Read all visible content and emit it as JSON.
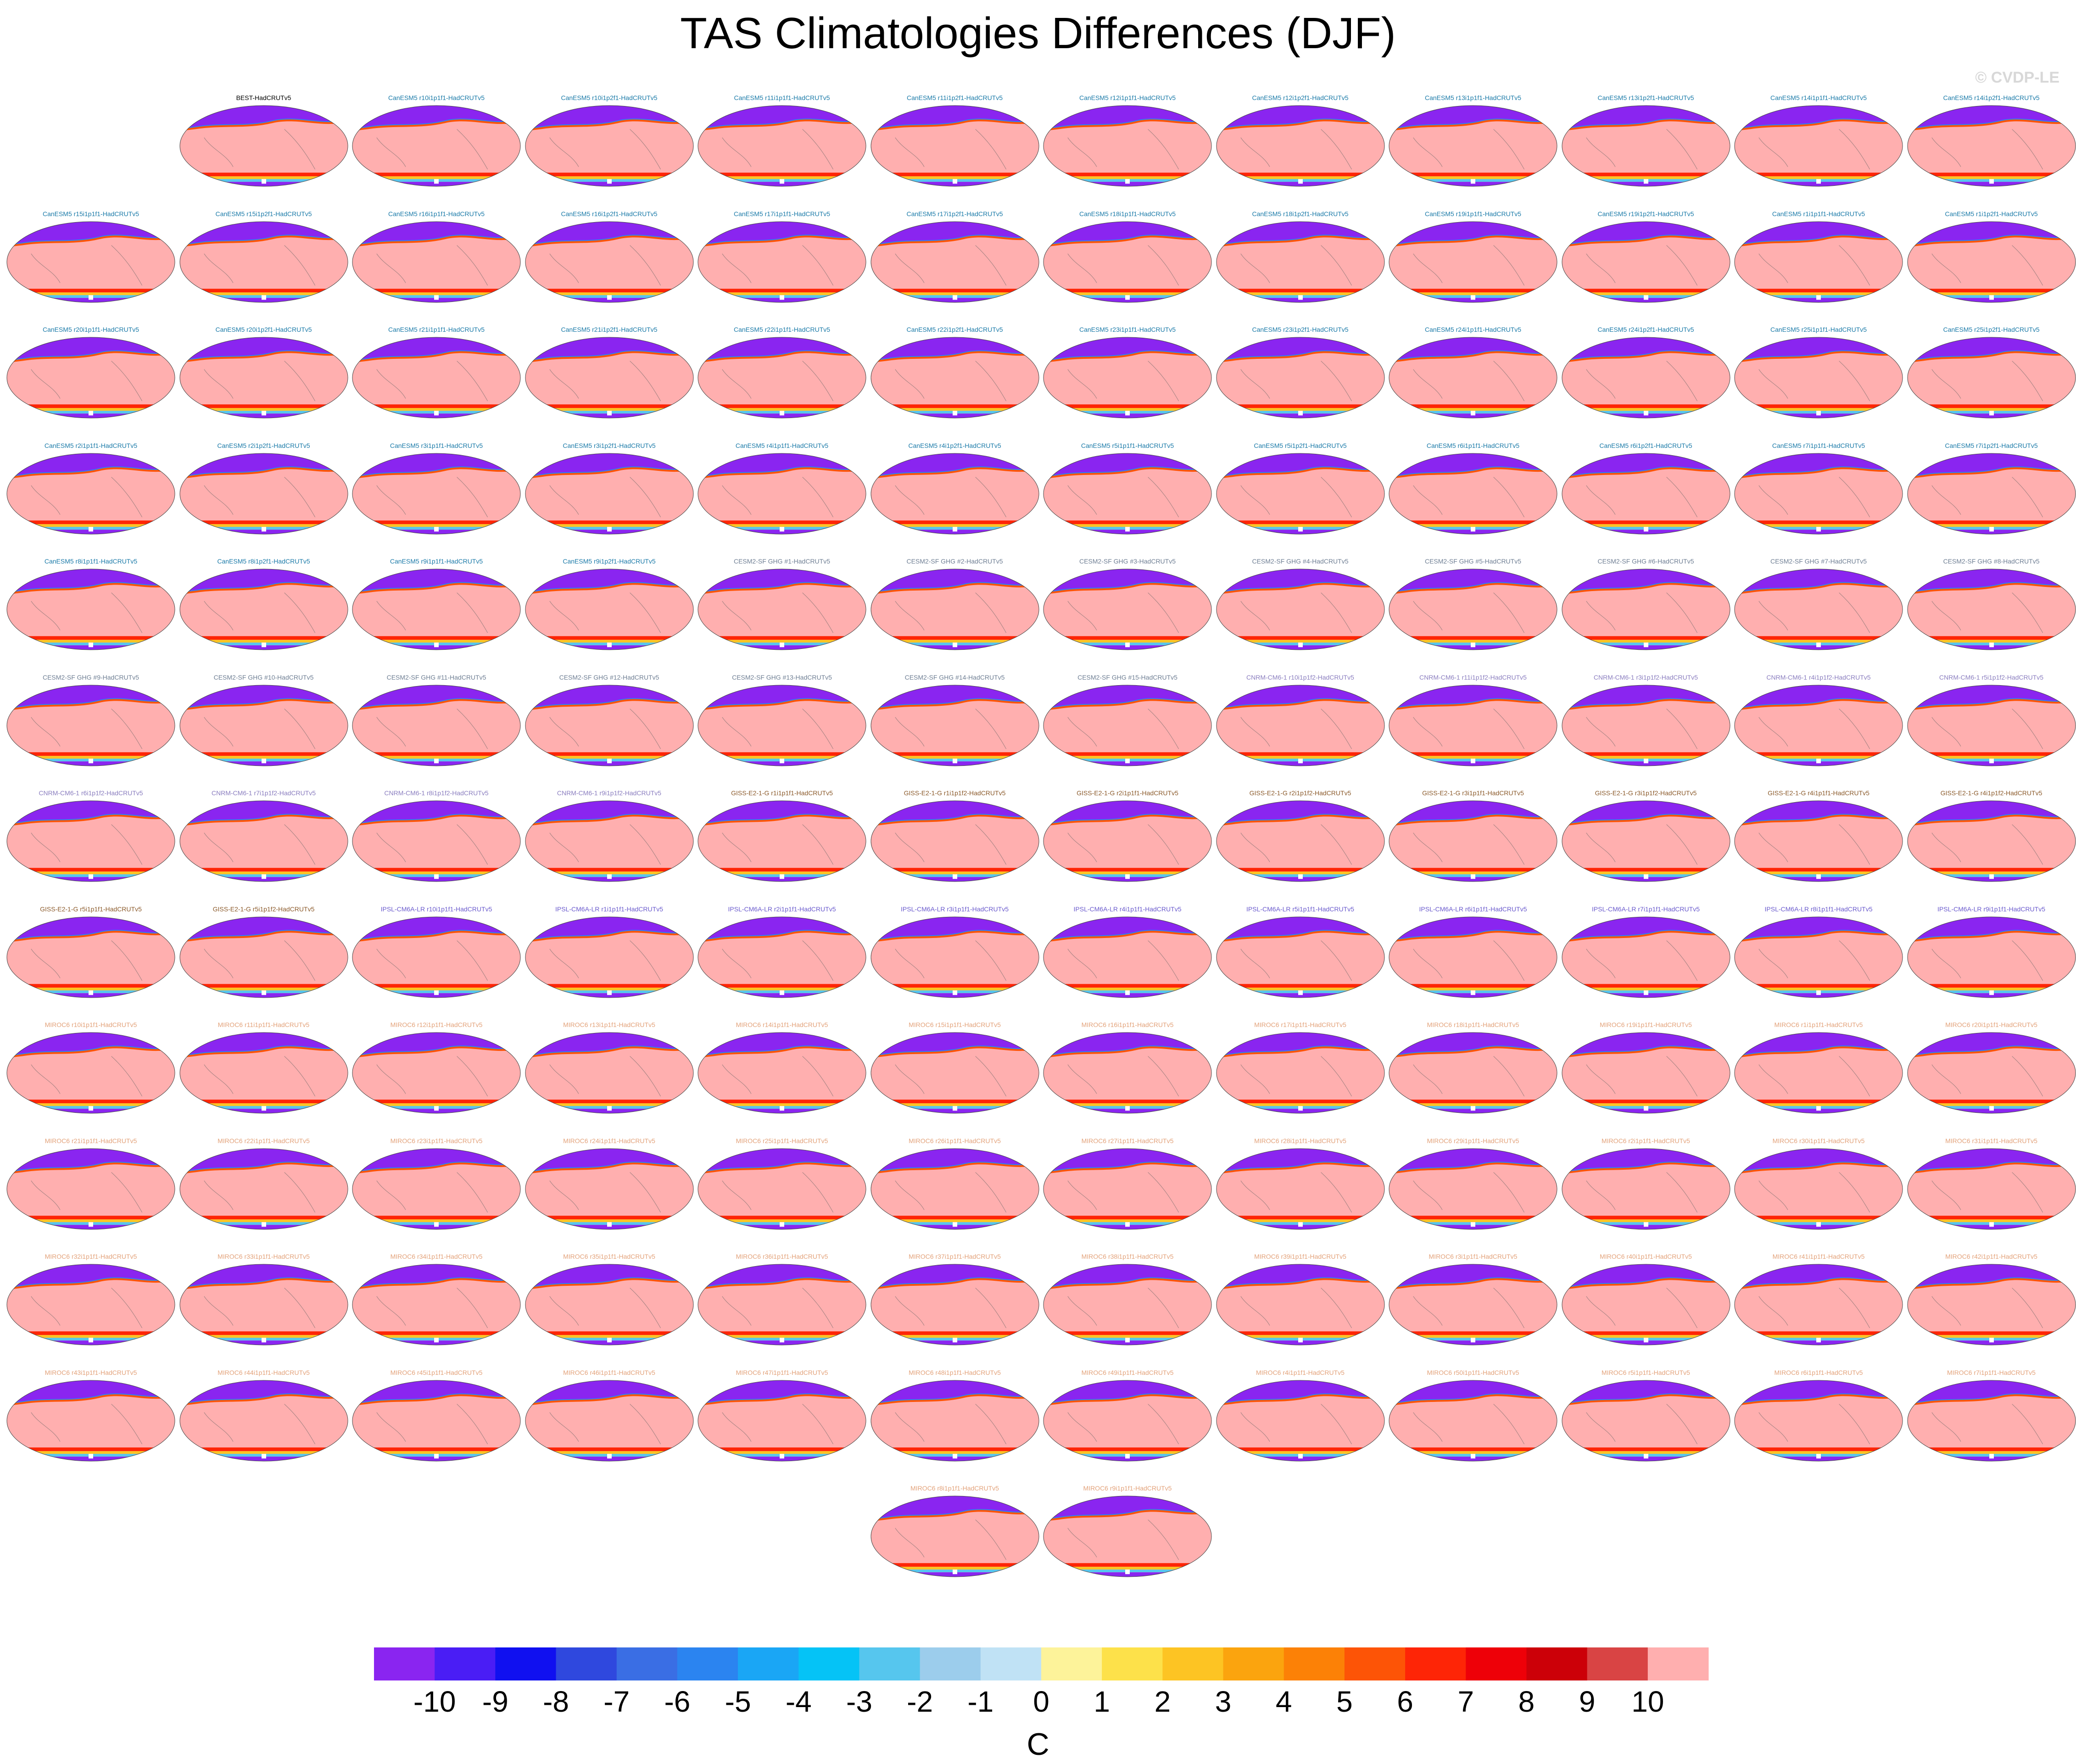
{
  "title": "TAS Climatologies Differences (DJF)",
  "watermark": "© CVDP-LE",
  "colorbar": {
    "unit": "C",
    "labels": [
      "-10",
      "-9",
      "-8",
      "-7",
      "-6",
      "-5",
      "-4",
      "-3",
      "-2",
      "-1",
      "0",
      "1",
      "2",
      "3",
      "4",
      "5",
      "6",
      "7",
      "8",
      "9",
      "10"
    ],
    "colors": [
      "#8a25f0",
      "#4a1df5",
      "#1010f0",
      "#2f48de",
      "#3a6ee4",
      "#2b84f0",
      "#1aa6f5",
      "#05c3f6",
      "#56c6ee",
      "#9ccdec",
      "#c0e2f5",
      "#fdf39a",
      "#fde14a",
      "#fdc423",
      "#fba40e",
      "#fc8106",
      "#fd5406",
      "#fe2506",
      "#ee0008",
      "#cc0008",
      "#d94444",
      "#ffafaf"
    ]
  },
  "chart_data": {
    "type": "heatmap",
    "title": "TAS Climatologies Differences (DJF)",
    "variable": "TAS",
    "season": "DJF",
    "unit": "C",
    "range": [
      -10,
      10
    ],
    "levels": [
      -10,
      -9,
      -8,
      -7,
      -6,
      -5,
      -4,
      -3,
      -2,
      -1,
      0,
      1,
      2,
      3,
      4,
      5,
      6,
      7,
      8,
      9,
      10
    ],
    "panels": [
      {
        "label": "BEST-HadCRUTv5",
        "color": "#000000"
      },
      {
        "label": "CanESM5 r10i1p1f1-HadCRUTv5",
        "color": "#1a7aa8"
      },
      {
        "label": "CanESM5 r10i1p2f1-HadCRUTv5",
        "color": "#1a7aa8"
      },
      {
        "label": "CanESM5 r11i1p1f1-HadCRUTv5",
        "color": "#1a7aa8"
      },
      {
        "label": "CanESM5 r11i1p2f1-HadCRUTv5",
        "color": "#1a7aa8"
      },
      {
        "label": "CanESM5 r12i1p1f1-HadCRUTv5",
        "color": "#1a7aa8"
      },
      {
        "label": "CanESM5 r12i1p2f1-HadCRUTv5",
        "color": "#1a7aa8"
      },
      {
        "label": "CanESM5 r13i1p1f1-HadCRUTv5",
        "color": "#1a7aa8"
      },
      {
        "label": "CanESM5 r13i1p2f1-HadCRUTv5",
        "color": "#1a7aa8"
      },
      {
        "label": "CanESM5 r14i1p1f1-HadCRUTv5",
        "color": "#1a7aa8"
      },
      {
        "label": "CanESM5 r14i1p2f1-HadCRUTv5",
        "color": "#1a7aa8"
      },
      {
        "label": "CanESM5 r15i1p1f1-HadCRUTv5",
        "color": "#1a7aa8"
      },
      {
        "label": "CanESM5 r15i1p2f1-HadCRUTv5",
        "color": "#1a7aa8"
      },
      {
        "label": "CanESM5 r16i1p1f1-HadCRUTv5",
        "color": "#1a7aa8"
      },
      {
        "label": "CanESM5 r16i1p2f1-HadCRUTv5",
        "color": "#1a7aa8"
      },
      {
        "label": "CanESM5 r17i1p1f1-HadCRUTv5",
        "color": "#1a7aa8"
      },
      {
        "label": "CanESM5 r17i1p2f1-HadCRUTv5",
        "color": "#1a7aa8"
      },
      {
        "label": "CanESM5 r18i1p1f1-HadCRUTv5",
        "color": "#1a7aa8"
      },
      {
        "label": "CanESM5 r18i1p2f1-HadCRUTv5",
        "color": "#1a7aa8"
      },
      {
        "label": "CanESM5 r19i1p1f1-HadCRUTv5",
        "color": "#1a7aa8"
      },
      {
        "label": "CanESM5 r19i1p2f1-HadCRUTv5",
        "color": "#1a7aa8"
      },
      {
        "label": "CanESM5 r1i1p1f1-HadCRUTv5",
        "color": "#1a7aa8"
      },
      {
        "label": "CanESM5 r1i1p2f1-HadCRUTv5",
        "color": "#1a7aa8"
      },
      {
        "label": "CanESM5 r20i1p1f1-HadCRUTv5",
        "color": "#1a7aa8"
      },
      {
        "label": "CanESM5 r20i1p2f1-HadCRUTv5",
        "color": "#1a7aa8"
      },
      {
        "label": "CanESM5 r21i1p1f1-HadCRUTv5",
        "color": "#1a7aa8"
      },
      {
        "label": "CanESM5 r21i1p2f1-HadCRUTv5",
        "color": "#1a7aa8"
      },
      {
        "label": "CanESM5 r22i1p1f1-HadCRUTv5",
        "color": "#1a7aa8"
      },
      {
        "label": "CanESM5 r22i1p2f1-HadCRUTv5",
        "color": "#1a7aa8"
      },
      {
        "label": "CanESM5 r23i1p1f1-HadCRUTv5",
        "color": "#1a7aa8"
      },
      {
        "label": "CanESM5 r23i1p2f1-HadCRUTv5",
        "color": "#1a7aa8"
      },
      {
        "label": "CanESM5 r24i1p1f1-HadCRUTv5",
        "color": "#1a7aa8"
      },
      {
        "label": "CanESM5 r24i1p2f1-HadCRUTv5",
        "color": "#1a7aa8"
      },
      {
        "label": "CanESM5 r25i1p1f1-HadCRUTv5",
        "color": "#1a7aa8"
      },
      {
        "label": "CanESM5 r25i1p2f1-HadCRUTv5",
        "color": "#1a7aa8"
      },
      {
        "label": "CanESM5 r2i1p1f1-HadCRUTv5",
        "color": "#1a7aa8"
      },
      {
        "label": "CanESM5 r2i1p2f1-HadCRUTv5",
        "color": "#1a7aa8"
      },
      {
        "label": "CanESM5 r3i1p1f1-HadCRUTv5",
        "color": "#1a7aa8"
      },
      {
        "label": "CanESM5 r3i1p2f1-HadCRUTv5",
        "color": "#1a7aa8"
      },
      {
        "label": "CanESM5 r4i1p1f1-HadCRUTv5",
        "color": "#1a7aa8"
      },
      {
        "label": "CanESM5 r4i1p2f1-HadCRUTv5",
        "color": "#1a7aa8"
      },
      {
        "label": "CanESM5 r5i1p1f1-HadCRUTv5",
        "color": "#1a7aa8"
      },
      {
        "label": "CanESM5 r5i1p2f1-HadCRUTv5",
        "color": "#1a7aa8"
      },
      {
        "label": "CanESM5 r6i1p1f1-HadCRUTv5",
        "color": "#1a7aa8"
      },
      {
        "label": "CanESM5 r6i1p2f1-HadCRUTv5",
        "color": "#1a7aa8"
      },
      {
        "label": "CanESM5 r7i1p1f1-HadCRUTv5",
        "color": "#1a7aa8"
      },
      {
        "label": "CanESM5 r7i1p2f1-HadCRUTv5",
        "color": "#1a7aa8"
      },
      {
        "label": "CanESM5 r8i1p1f1-HadCRUTv5",
        "color": "#1a7aa8"
      },
      {
        "label": "CanESM5 r8i1p2f1-HadCRUTv5",
        "color": "#1a7aa8"
      },
      {
        "label": "CanESM5 r9i1p1f1-HadCRUTv5",
        "color": "#1a7aa8"
      },
      {
        "label": "CanESM5 r9i1p2f1-HadCRUTv5",
        "color": "#1a7aa8"
      },
      {
        "label": "CESM2-SF GHG #1-HadCRUTv5",
        "color": "#6e7e93"
      },
      {
        "label": "CESM2-SF GHG #2-HadCRUTv5",
        "color": "#6e7e93"
      },
      {
        "label": "CESM2-SF GHG #3-HadCRUTv5",
        "color": "#6e7e93"
      },
      {
        "label": "CESM2-SF GHG #4-HadCRUTv5",
        "color": "#6e7e93"
      },
      {
        "label": "CESM2-SF GHG #5-HadCRUTv5",
        "color": "#6e7e93"
      },
      {
        "label": "CESM2-SF GHG #6-HadCRUTv5",
        "color": "#6e7e93"
      },
      {
        "label": "CESM2-SF GHG #7-HadCRUTv5",
        "color": "#6e7e93"
      },
      {
        "label": "CESM2-SF GHG #8-HadCRUTv5",
        "color": "#6e7e93"
      },
      {
        "label": "CESM2-SF GHG #9-HadCRUTv5",
        "color": "#6e7e93"
      },
      {
        "label": "CESM2-SF GHG #10-HadCRUTv5",
        "color": "#6e7e93"
      },
      {
        "label": "CESM2-SF GHG #11-HadCRUTv5",
        "color": "#6e7e93"
      },
      {
        "label": "CESM2-SF GHG #12-HadCRUTv5",
        "color": "#6e7e93"
      },
      {
        "label": "CESM2-SF GHG #13-HadCRUTv5",
        "color": "#6e7e93"
      },
      {
        "label": "CESM2-SF GHG #14-HadCRUTv5",
        "color": "#6e7e93"
      },
      {
        "label": "CESM2-SF GHG #15-HadCRUTv5",
        "color": "#6e7e93"
      },
      {
        "label": "CNRM-CM6-1 r10i1p1f2-HadCRUTv5",
        "color": "#8a7dbf"
      },
      {
        "label": "CNRM-CM6-1 r11i1p1f2-HadCRUTv5",
        "color": "#8a7dbf"
      },
      {
        "label": "CNRM-CM6-1 r3i1p1f2-HadCRUTv5",
        "color": "#8a7dbf"
      },
      {
        "label": "CNRM-CM6-1 r4i1p1f2-HadCRUTv5",
        "color": "#8a7dbf"
      },
      {
        "label": "CNRM-CM6-1 r5i1p1f2-HadCRUTv5",
        "color": "#8a7dbf"
      },
      {
        "label": "CNRM-CM6-1 r6i1p1f2-HadCRUTv5",
        "color": "#8a7dbf"
      },
      {
        "label": "CNRM-CM6-1 r7i1p1f2-HadCRUTv5",
        "color": "#8a7dbf"
      },
      {
        "label": "CNRM-CM6-1 r8i1p1f2-HadCRUTv5",
        "color": "#8a7dbf"
      },
      {
        "label": "CNRM-CM6-1 r9i1p1f2-HadCRUTv5",
        "color": "#8a7dbf"
      },
      {
        "label": "GISS-E2-1-G r1i1p1f1-HadCRUTv5",
        "color": "#8b5a2b"
      },
      {
        "label": "GISS-E2-1-G r1i1p1f2-HadCRUTv5",
        "color": "#8b5a2b"
      },
      {
        "label": "GISS-E2-1-G r2i1p1f1-HadCRUTv5",
        "color": "#8b5a2b"
      },
      {
        "label": "GISS-E2-1-G r2i1p1f2-HadCRUTv5",
        "color": "#8b5a2b"
      },
      {
        "label": "GISS-E2-1-G r3i1p1f1-HadCRUTv5",
        "color": "#8b5a2b"
      },
      {
        "label": "GISS-E2-1-G r3i1p1f2-HadCRUTv5",
        "color": "#8b5a2b"
      },
      {
        "label": "GISS-E2-1-G r4i1p1f1-HadCRUTv5",
        "color": "#8b5a2b"
      },
      {
        "label": "GISS-E2-1-G r4i1p1f2-HadCRUTv5",
        "color": "#8b5a2b"
      },
      {
        "label": "GISS-E2-1-G r5i1p1f1-HadCRUTv5",
        "color": "#8b5a2b"
      },
      {
        "label": "GISS-E2-1-G r5i1p1f2-HadCRUTv5",
        "color": "#8b5a2b"
      },
      {
        "label": "IPSL-CM6A-LR r10i1p1f1-HadCRUTv5",
        "color": "#6a5acd"
      },
      {
        "label": "IPSL-CM6A-LR r1i1p1f1-HadCRUTv5",
        "color": "#6a5acd"
      },
      {
        "label": "IPSL-CM6A-LR r2i1p1f1-HadCRUTv5",
        "color": "#6a5acd"
      },
      {
        "label": "IPSL-CM6A-LR r3i1p1f1-HadCRUTv5",
        "color": "#6a5acd"
      },
      {
        "label": "IPSL-CM6A-LR r4i1p1f1-HadCRUTv5",
        "color": "#6a5acd"
      },
      {
        "label": "IPSL-CM6A-LR r5i1p1f1-HadCRUTv5",
        "color": "#6a5acd"
      },
      {
        "label": "IPSL-CM6A-LR r6i1p1f1-HadCRUTv5",
        "color": "#6a5acd"
      },
      {
        "label": "IPSL-CM6A-LR r7i1p1f1-HadCRUTv5",
        "color": "#6a5acd"
      },
      {
        "label": "IPSL-CM6A-LR r8i1p1f1-HadCRUTv5",
        "color": "#6a5acd"
      },
      {
        "label": "IPSL-CM6A-LR r9i1p1f1-HadCRUTv5",
        "color": "#6a5acd"
      },
      {
        "label": "MIROC6 r10i1p1f1-HadCRUTv5",
        "color": "#e3a27a"
      },
      {
        "label": "MIROC6 r11i1p1f1-HadCRUTv5",
        "color": "#e3a27a"
      },
      {
        "label": "MIROC6 r12i1p1f1-HadCRUTv5",
        "color": "#e3a27a"
      },
      {
        "label": "MIROC6 r13i1p1f1-HadCRUTv5",
        "color": "#e3a27a"
      },
      {
        "label": "MIROC6 r14i1p1f1-HadCRUTv5",
        "color": "#e3a27a"
      },
      {
        "label": "MIROC6 r15i1p1f1-HadCRUTv5",
        "color": "#e3a27a"
      },
      {
        "label": "MIROC6 r16i1p1f1-HadCRUTv5",
        "color": "#e3a27a"
      },
      {
        "label": "MIROC6 r17i1p1f1-HadCRUTv5",
        "color": "#e3a27a"
      },
      {
        "label": "MIROC6 r18i1p1f1-HadCRUTv5",
        "color": "#e3a27a"
      },
      {
        "label": "MIROC6 r19i1p1f1-HadCRUTv5",
        "color": "#e3a27a"
      },
      {
        "label": "MIROC6 r1i1p1f1-HadCRUTv5",
        "color": "#e3a27a"
      },
      {
        "label": "MIROC6 r20i1p1f1-HadCRUTv5",
        "color": "#e3a27a"
      },
      {
        "label": "MIROC6 r21i1p1f1-HadCRUTv5",
        "color": "#e3a27a"
      },
      {
        "label": "MIROC6 r22i1p1f1-HadCRUTv5",
        "color": "#e3a27a"
      },
      {
        "label": "MIROC6 r23i1p1f1-HadCRUTv5",
        "color": "#e3a27a"
      },
      {
        "label": "MIROC6 r24i1p1f1-HadCRUTv5",
        "color": "#e3a27a"
      },
      {
        "label": "MIROC6 r25i1p1f1-HadCRUTv5",
        "color": "#e3a27a"
      },
      {
        "label": "MIROC6 r26i1p1f1-HadCRUTv5",
        "color": "#e3a27a"
      },
      {
        "label": "MIROC6 r27i1p1f1-HadCRUTv5",
        "color": "#e3a27a"
      },
      {
        "label": "MIROC6 r28i1p1f1-HadCRUTv5",
        "color": "#e3a27a"
      },
      {
        "label": "MIROC6 r29i1p1f1-HadCRUTv5",
        "color": "#e3a27a"
      },
      {
        "label": "MIROC6 r2i1p1f1-HadCRUTv5",
        "color": "#e3a27a"
      },
      {
        "label": "MIROC6 r30i1p1f1-HadCRUTv5",
        "color": "#e3a27a"
      },
      {
        "label": "MIROC6 r31i1p1f1-HadCRUTv5",
        "color": "#e3a27a"
      },
      {
        "label": "MIROC6 r32i1p1f1-HadCRUTv5",
        "color": "#e3a27a"
      },
      {
        "label": "MIROC6 r33i1p1f1-HadCRUTv5",
        "color": "#e3a27a"
      },
      {
        "label": "MIROC6 r34i1p1f1-HadCRUTv5",
        "color": "#e3a27a"
      },
      {
        "label": "MIROC6 r35i1p1f1-HadCRUTv5",
        "color": "#e3a27a"
      },
      {
        "label": "MIROC6 r36i1p1f1-HadCRUTv5",
        "color": "#e3a27a"
      },
      {
        "label": "MIROC6 r37i1p1f1-HadCRUTv5",
        "color": "#e3a27a"
      },
      {
        "label": "MIROC6 r38i1p1f1-HadCRUTv5",
        "color": "#e3a27a"
      },
      {
        "label": "MIROC6 r39i1p1f1-HadCRUTv5",
        "color": "#e3a27a"
      },
      {
        "label": "MIROC6 r3i1p1f1-HadCRUTv5",
        "color": "#e3a27a"
      },
      {
        "label": "MIROC6 r40i1p1f1-HadCRUTv5",
        "color": "#e3a27a"
      },
      {
        "label": "MIROC6 r41i1p1f1-HadCRUTv5",
        "color": "#e3a27a"
      },
      {
        "label": "MIROC6 r42i1p1f1-HadCRUTv5",
        "color": "#e3a27a"
      },
      {
        "label": "MIROC6 r43i1p1f1-HadCRUTv5",
        "color": "#e3a27a"
      },
      {
        "label": "MIROC6 r44i1p1f1-HadCRUTv5",
        "color": "#e3a27a"
      },
      {
        "label": "MIROC6 r45i1p1f1-HadCRUTv5",
        "color": "#e3a27a"
      },
      {
        "label": "MIROC6 r46i1p1f1-HadCRUTv5",
        "color": "#e3a27a"
      },
      {
        "label": "MIROC6 r47i1p1f1-HadCRUTv5",
        "color": "#e3a27a"
      },
      {
        "label": "MIROC6 r48i1p1f1-HadCRUTv5",
        "color": "#e3a27a"
      },
      {
        "label": "MIROC6 r49i1p1f1-HadCRUTv5",
        "color": "#e3a27a"
      },
      {
        "label": "MIROC6 r4i1p1f1-HadCRUTv5",
        "color": "#e3a27a"
      },
      {
        "label": "MIROC6 r50i1p1f1-HadCRUTv5",
        "color": "#e3a27a"
      },
      {
        "label": "MIROC6 r5i1p1f1-HadCRUTv5",
        "color": "#e3a27a"
      },
      {
        "label": "MIROC6 r6i1p1f1-HadCRUTv5",
        "color": "#e3a27a"
      },
      {
        "label": "MIROC6 r7i1p1f1-HadCRUTv5",
        "color": "#e3a27a"
      },
      {
        "label": "MIROC6 r8i1p1f1-HadCRUTv5",
        "color": "#e3a27a"
      },
      {
        "label": "MIROC6 r9i1p1f1-HadCRUTv5",
        "color": "#e3a27a"
      }
    ]
  }
}
